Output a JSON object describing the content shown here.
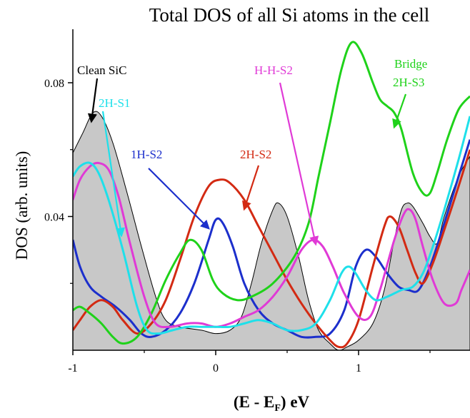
{
  "chart_data": {
    "type": "line",
    "title": "Total DOS of all Si atoms in the cell",
    "xlabel": {
      "main": "(E - E",
      "sub": "F",
      "tail": ") eV"
    },
    "ylabel": "DOS (arb. units)",
    "xlim": [
      -1,
      1.78
    ],
    "ylim": [
      0,
      0.096
    ],
    "x_ticks": [
      {
        "value": -1,
        "label": "-1"
      },
      {
        "value": 0,
        "label": "0"
      },
      {
        "value": 1,
        "label": "1"
      }
    ],
    "y_ticks": [
      {
        "value": 0.04,
        "label": "0.04"
      },
      {
        "value": 0.08,
        "label": "0.08"
      }
    ],
    "grid": false,
    "legend": "none (curves labeled with arrows)",
    "filled_series": {
      "name": "Clean SiC",
      "fill": "#c8c8c8",
      "stroke": "#000000",
      "points": [
        [
          -1.0,
          0.059
        ],
        [
          -0.93,
          0.065
        ],
        [
          -0.86,
          0.071
        ],
        [
          -0.8,
          0.07
        ],
        [
          -0.72,
          0.062
        ],
        [
          -0.62,
          0.047
        ],
        [
          -0.52,
          0.031
        ],
        [
          -0.42,
          0.016
        ],
        [
          -0.35,
          0.009
        ],
        [
          -0.25,
          0.007
        ],
        [
          -0.1,
          0.006
        ],
        [
          0.0,
          0.005
        ],
        [
          0.1,
          0.006
        ],
        [
          0.18,
          0.01
        ],
        [
          0.25,
          0.02
        ],
        [
          0.32,
          0.032
        ],
        [
          0.4,
          0.042
        ],
        [
          0.44,
          0.044
        ],
        [
          0.5,
          0.04
        ],
        [
          0.58,
          0.028
        ],
        [
          0.65,
          0.015
        ],
        [
          0.72,
          0.006
        ],
        [
          0.8,
          0.002
        ],
        [
          0.86,
          0.0
        ],
        [
          0.92,
          0.001
        ],
        [
          1.0,
          0.003
        ],
        [
          1.1,
          0.008
        ],
        [
          1.18,
          0.018
        ],
        [
          1.25,
          0.033
        ],
        [
          1.3,
          0.042
        ],
        [
          1.34,
          0.044
        ],
        [
          1.38,
          0.043
        ],
        [
          1.45,
          0.038
        ],
        [
          1.5,
          0.034
        ],
        [
          1.55,
          0.032
        ],
        [
          1.6,
          0.04
        ],
        [
          1.7,
          0.052
        ],
        [
          1.78,
          0.058
        ]
      ]
    },
    "series": [
      {
        "name": "1H-S2",
        "color": "#1c2fcc",
        "points": [
          [
            -1.0,
            0.033
          ],
          [
            -0.95,
            0.025
          ],
          [
            -0.88,
            0.019
          ],
          [
            -0.8,
            0.016
          ],
          [
            -0.7,
            0.013
          ],
          [
            -0.6,
            0.009
          ],
          [
            -0.52,
            0.005
          ],
          [
            -0.45,
            0.004
          ],
          [
            -0.35,
            0.006
          ],
          [
            -0.25,
            0.011
          ],
          [
            -0.15,
            0.02
          ],
          [
            -0.05,
            0.033
          ],
          [
            0.0,
            0.039
          ],
          [
            0.05,
            0.038
          ],
          [
            0.12,
            0.031
          ],
          [
            0.2,
            0.02
          ],
          [
            0.3,
            0.012
          ],
          [
            0.4,
            0.008
          ],
          [
            0.5,
            0.006
          ],
          [
            0.6,
            0.004
          ],
          [
            0.7,
            0.004
          ],
          [
            0.8,
            0.005
          ],
          [
            0.9,
            0.012
          ],
          [
            0.98,
            0.025
          ],
          [
            1.05,
            0.03
          ],
          [
            1.12,
            0.028
          ],
          [
            1.2,
            0.023
          ],
          [
            1.28,
            0.019
          ],
          [
            1.35,
            0.018
          ],
          [
            1.42,
            0.018
          ],
          [
            1.5,
            0.025
          ],
          [
            1.6,
            0.038
          ],
          [
            1.7,
            0.052
          ],
          [
            1.78,
            0.063
          ]
        ]
      },
      {
        "name": "2H-S2",
        "color": "#d32a13",
        "points": [
          [
            -1.0,
            0.006
          ],
          [
            -0.95,
            0.009
          ],
          [
            -0.88,
            0.013
          ],
          [
            -0.8,
            0.015
          ],
          [
            -0.72,
            0.013
          ],
          [
            -0.65,
            0.009
          ],
          [
            -0.55,
            0.005
          ],
          [
            -0.45,
            0.008
          ],
          [
            -0.35,
            0.015
          ],
          [
            -0.25,
            0.027
          ],
          [
            -0.15,
            0.04
          ],
          [
            -0.05,
            0.049
          ],
          [
            0.03,
            0.051
          ],
          [
            0.1,
            0.05
          ],
          [
            0.2,
            0.045
          ],
          [
            0.3,
            0.037
          ],
          [
            0.4,
            0.029
          ],
          [
            0.5,
            0.021
          ],
          [
            0.6,
            0.014
          ],
          [
            0.7,
            0.008
          ],
          [
            0.8,
            0.003
          ],
          [
            0.86,
            0.001
          ],
          [
            0.92,
            0.002
          ],
          [
            1.0,
            0.009
          ],
          [
            1.1,
            0.025
          ],
          [
            1.18,
            0.037
          ],
          [
            1.22,
            0.04
          ],
          [
            1.28,
            0.037
          ],
          [
            1.34,
            0.03
          ],
          [
            1.4,
            0.023
          ],
          [
            1.45,
            0.02
          ],
          [
            1.52,
            0.026
          ],
          [
            1.6,
            0.036
          ],
          [
            1.7,
            0.049
          ],
          [
            1.78,
            0.06
          ]
        ]
      },
      {
        "name": "Bridge 2H-S3",
        "color": "#1fd21a",
        "points": [
          [
            -1.0,
            0.012
          ],
          [
            -0.95,
            0.013
          ],
          [
            -0.88,
            0.011
          ],
          [
            -0.8,
            0.008
          ],
          [
            -0.72,
            0.004
          ],
          [
            -0.65,
            0.002
          ],
          [
            -0.55,
            0.004
          ],
          [
            -0.45,
            0.011
          ],
          [
            -0.35,
            0.021
          ],
          [
            -0.25,
            0.029
          ],
          [
            -0.18,
            0.033
          ],
          [
            -0.1,
            0.03
          ],
          [
            -0.02,
            0.021
          ],
          [
            0.05,
            0.017
          ],
          [
            0.15,
            0.015
          ],
          [
            0.25,
            0.016
          ],
          [
            0.4,
            0.02
          ],
          [
            0.55,
            0.028
          ],
          [
            0.65,
            0.038
          ],
          [
            0.72,
            0.052
          ],
          [
            0.8,
            0.068
          ],
          [
            0.88,
            0.084
          ],
          [
            0.95,
            0.092
          ],
          [
            1.02,
            0.089
          ],
          [
            1.1,
            0.08
          ],
          [
            1.15,
            0.075
          ],
          [
            1.2,
            0.073
          ],
          [
            1.25,
            0.071
          ],
          [
            1.3,
            0.066
          ],
          [
            1.38,
            0.053
          ],
          [
            1.45,
            0.047
          ],
          [
            1.5,
            0.047
          ],
          [
            1.55,
            0.053
          ],
          [
            1.62,
            0.063
          ],
          [
            1.7,
            0.072
          ],
          [
            1.78,
            0.076
          ]
        ]
      },
      {
        "name": "H-H-S2",
        "color": "#e03ad6",
        "points": [
          [
            -1.0,
            0.045
          ],
          [
            -0.95,
            0.051
          ],
          [
            -0.88,
            0.055
          ],
          [
            -0.82,
            0.056
          ],
          [
            -0.75,
            0.054
          ],
          [
            -0.68,
            0.046
          ],
          [
            -0.6,
            0.032
          ],
          [
            -0.5,
            0.016
          ],
          [
            -0.42,
            0.008
          ],
          [
            -0.32,
            0.007
          ],
          [
            -0.2,
            0.008
          ],
          [
            -0.1,
            0.008
          ],
          [
            0.0,
            0.007
          ],
          [
            0.1,
            0.008
          ],
          [
            0.2,
            0.01
          ],
          [
            0.3,
            0.012
          ],
          [
            0.4,
            0.016
          ],
          [
            0.5,
            0.022
          ],
          [
            0.6,
            0.03
          ],
          [
            0.68,
            0.033
          ],
          [
            0.75,
            0.031
          ],
          [
            0.82,
            0.025
          ],
          [
            0.9,
            0.017
          ],
          [
            1.0,
            0.01
          ],
          [
            1.08,
            0.01
          ],
          [
            1.15,
            0.018
          ],
          [
            1.25,
            0.033
          ],
          [
            1.32,
            0.041
          ],
          [
            1.36,
            0.042
          ],
          [
            1.4,
            0.039
          ],
          [
            1.45,
            0.031
          ],
          [
            1.52,
            0.021
          ],
          [
            1.6,
            0.014
          ],
          [
            1.68,
            0.014
          ],
          [
            1.72,
            0.018
          ],
          [
            1.78,
            0.024
          ]
        ]
      },
      {
        "name": "2H-S1",
        "color": "#1ee0ea",
        "points": [
          [
            -1.0,
            0.052
          ],
          [
            -0.95,
            0.055
          ],
          [
            -0.88,
            0.056
          ],
          [
            -0.82,
            0.053
          ],
          [
            -0.75,
            0.045
          ],
          [
            -0.65,
            0.03
          ],
          [
            -0.55,
            0.013
          ],
          [
            -0.48,
            0.006
          ],
          [
            -0.4,
            0.005
          ],
          [
            -0.3,
            0.006
          ],
          [
            -0.2,
            0.007
          ],
          [
            -0.1,
            0.007
          ],
          [
            0.0,
            0.007
          ],
          [
            0.1,
            0.007
          ],
          [
            0.2,
            0.008
          ],
          [
            0.3,
            0.009
          ],
          [
            0.4,
            0.008
          ],
          [
            0.5,
            0.006
          ],
          [
            0.6,
            0.006
          ],
          [
            0.7,
            0.008
          ],
          [
            0.8,
            0.015
          ],
          [
            0.88,
            0.023
          ],
          [
            0.93,
            0.025
          ],
          [
            0.98,
            0.023
          ],
          [
            1.05,
            0.018
          ],
          [
            1.12,
            0.015
          ],
          [
            1.2,
            0.016
          ],
          [
            1.3,
            0.018
          ],
          [
            1.38,
            0.019
          ],
          [
            1.45,
            0.023
          ],
          [
            1.52,
            0.031
          ],
          [
            1.6,
            0.042
          ],
          [
            1.7,
            0.057
          ],
          [
            1.78,
            0.07
          ]
        ]
      }
    ],
    "annotations": [
      {
        "text": "Clean SiC",
        "color": "#000000"
      },
      {
        "text": "2H-S1",
        "color": "#1ee0ea"
      },
      {
        "text": "1H-S2",
        "color": "#1c2fcc"
      },
      {
        "text": "2H-S2",
        "color": "#d32a13"
      },
      {
        "text": "H-H-S2",
        "color": "#e03ad6"
      },
      {
        "text": "Bridge",
        "color": "#1fd21a"
      },
      {
        "text": "2H-S3",
        "color": "#1fd21a"
      }
    ]
  }
}
